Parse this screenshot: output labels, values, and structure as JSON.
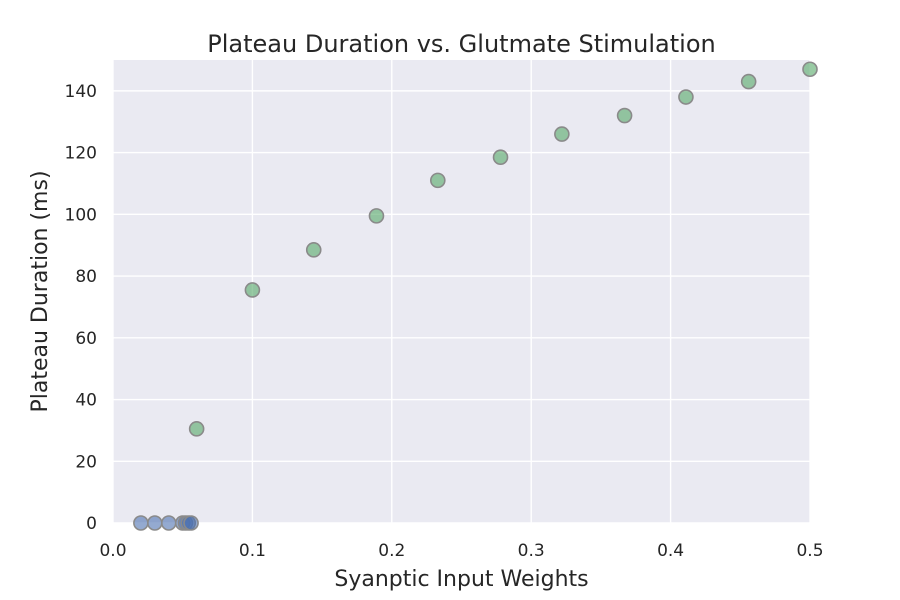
{
  "chart_data": {
    "type": "scatter",
    "title": "Plateau Duration vs. Glutmate Stimulation",
    "xlabel": "Syanptic Input Weights",
    "ylabel": "Plateau Duration (ms)",
    "xlim": [
      0.0,
      0.5
    ],
    "ylim": [
      0,
      150
    ],
    "x_ticks": [
      0.0,
      0.1,
      0.2,
      0.3,
      0.4,
      0.5
    ],
    "x_tick_labels": [
      "0.0",
      "0.1",
      "0.2",
      "0.3",
      "0.4",
      "0.5"
    ],
    "y_ticks": [
      0,
      20,
      40,
      60,
      80,
      100,
      120,
      140
    ],
    "y_tick_labels": [
      "0",
      "20",
      "40",
      "60",
      "80",
      "100",
      "120",
      "140"
    ],
    "grid": true,
    "legend": false,
    "background_color": "#EAEAF2",
    "series": [
      {
        "color": "#4C72B0",
        "points": [
          {
            "x": 0.02,
            "y": 0
          },
          {
            "x": 0.03,
            "y": 0
          },
          {
            "x": 0.04,
            "y": 0
          },
          {
            "x": 0.05,
            "y": 0
          },
          {
            "x": 0.052,
            "y": 0
          },
          {
            "x": 0.054,
            "y": 0
          },
          {
            "x": 0.056,
            "y": 0
          }
        ]
      },
      {
        "color": "#55A868",
        "points": [
          {
            "x": 0.06,
            "y": 30.5
          },
          {
            "x": 0.1,
            "y": 75.5
          },
          {
            "x": 0.144,
            "y": 88.5
          },
          {
            "x": 0.189,
            "y": 99.5
          },
          {
            "x": 0.233,
            "y": 111
          },
          {
            "x": 0.278,
            "y": 118.5
          },
          {
            "x": 0.322,
            "y": 126
          },
          {
            "x": 0.367,
            "y": 132
          },
          {
            "x": 0.411,
            "y": 138
          },
          {
            "x": 0.456,
            "y": 143
          },
          {
            "x": 0.5,
            "y": 147
          }
        ]
      }
    ]
  }
}
